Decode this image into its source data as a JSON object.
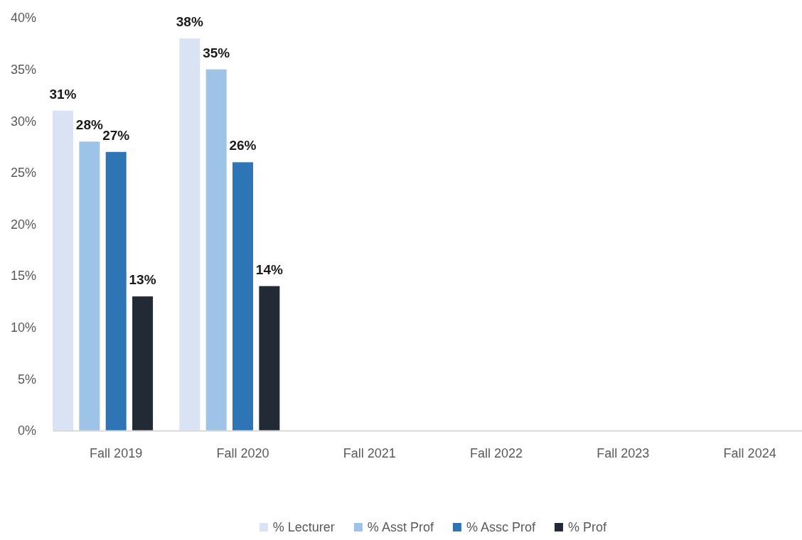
{
  "chart_data": {
    "type": "bar",
    "categories": [
      "Fall 2019",
      "Fall 2020",
      "Fall 2021",
      "Fall 2022",
      "Fall 2023",
      "Fall 2024"
    ],
    "series": [
      {
        "name": "% Lecturer",
        "color": "#dae3f3",
        "values": [
          31,
          38,
          null,
          null,
          null,
          null
        ],
        "value_labels": [
          "31%",
          "38%",
          null,
          null,
          null,
          null
        ]
      },
      {
        "name": "% Asst Prof",
        "color": "#9dc3e6",
        "values": [
          28,
          35,
          null,
          null,
          null,
          null
        ],
        "value_labels": [
          "28%",
          "35%",
          null,
          null,
          null,
          null
        ]
      },
      {
        "name": "% Assc Prof",
        "color": "#2e75b6",
        "values": [
          27,
          26,
          null,
          null,
          null,
          null
        ],
        "value_labels": [
          "27%",
          "26%",
          null,
          null,
          null,
          null
        ]
      },
      {
        "name": "% Prof",
        "color": "#222a35",
        "values": [
          13,
          14,
          null,
          null,
          null,
          null
        ],
        "value_labels": [
          "13%",
          "14%",
          null,
          null,
          null,
          null
        ]
      }
    ],
    "ylim": [
      0,
      40
    ],
    "yticks": [
      {
        "value": 0,
        "label": "0%"
      },
      {
        "value": 5,
        "label": "5%"
      },
      {
        "value": 10,
        "label": "10%"
      },
      {
        "value": 15,
        "label": "15%"
      },
      {
        "value": 20,
        "label": "20%"
      },
      {
        "value": 25,
        "label": "25%"
      },
      {
        "value": 30,
        "label": "30%"
      },
      {
        "value": 35,
        "label": "35%"
      },
      {
        "value": 40,
        "label": "40%"
      }
    ],
    "legend": "bottom"
  }
}
